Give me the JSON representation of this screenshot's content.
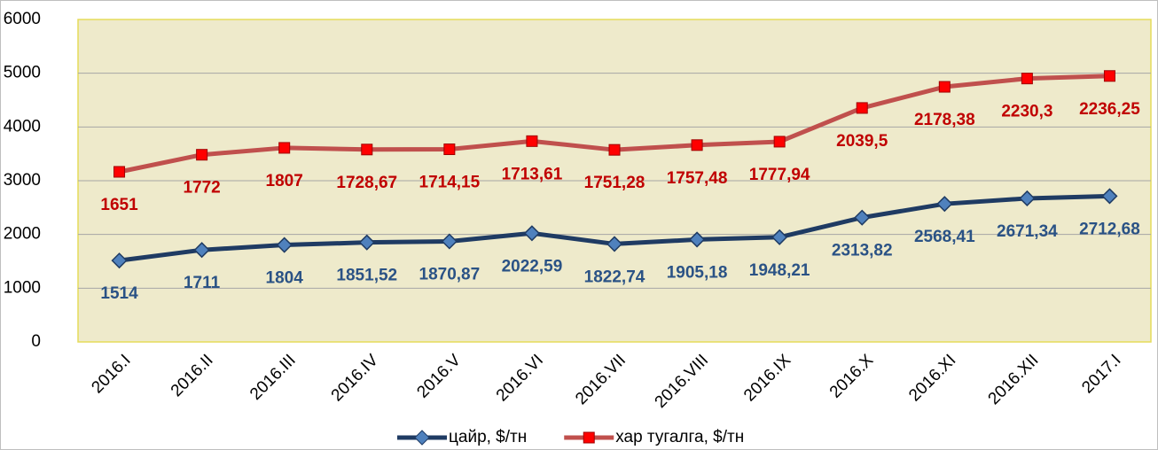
{
  "chart_data": {
    "type": "line",
    "stacked": true,
    "grid": true,
    "legend": "bottom",
    "categories": [
      "2016.I",
      "2016.II",
      "2016.III",
      "2016.IV",
      "2016.V",
      "2016.VI",
      "2016.VII",
      "2016.VIII",
      "2016.IX",
      "2016.X",
      "2016.XI",
      "2016.XII",
      "2017.I"
    ],
    "ylim": [
      0,
      6000
    ],
    "yticks": [
      0,
      1000,
      2000,
      3000,
      4000,
      5000,
      6000
    ],
    "series": [
      {
        "name": "цайр, $/тн",
        "color": "#1f3b63",
        "marker_color": "#4f81bd",
        "label_color": "#2a5285",
        "values": [
          1514,
          1711,
          1804,
          1851.52,
          1870.87,
          2022.59,
          1822.74,
          1905.18,
          1948.21,
          2313.82,
          2568.41,
          2671.34,
          2712.68
        ],
        "value_labels": [
          "1514",
          "1711",
          "1804",
          "1851,52",
          "1870,87",
          "2022,59",
          "1822,74",
          "1905,18",
          "1948,21",
          "2313,82",
          "2568,41",
          "2671,34",
          "2712,68"
        ]
      },
      {
        "name": "хар тугалга, $/тн",
        "color": "#c0504d",
        "marker_color": "#ff0000",
        "label_color": "#c00000",
        "values": [
          1651,
          1772,
          1807,
          1728.67,
          1714.15,
          1713.61,
          1751.28,
          1757.48,
          1777.94,
          2039.5,
          2178.38,
          2230.3,
          2236.25
        ],
        "value_labels": [
          "1651",
          "1772",
          "1807",
          "1728,67",
          "1714,15",
          "1713,61",
          "1751,28",
          "1757,48",
          "1777,94",
          "2039,5",
          "2178,38",
          "2230,3",
          "2236,25"
        ]
      }
    ]
  }
}
